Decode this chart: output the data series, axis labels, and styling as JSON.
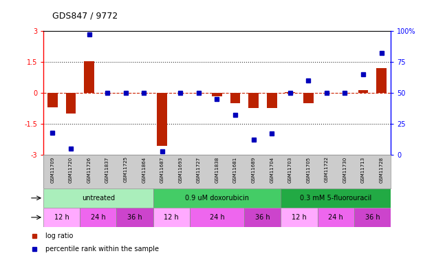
{
  "title": "GDS847 / 9772",
  "samples": [
    "GSM11709",
    "GSM11720",
    "GSM11726",
    "GSM11837",
    "GSM11725",
    "GSM11864",
    "GSM11687",
    "GSM11693",
    "GSM11727",
    "GSM11838",
    "GSM11681",
    "GSM11689",
    "GSM11704",
    "GSM11703",
    "GSM11705",
    "GSM11722",
    "GSM11730",
    "GSM11713",
    "GSM11728"
  ],
  "log_ratio": [
    -0.7,
    -1.0,
    1.55,
    0.0,
    0.0,
    0.0,
    -2.55,
    0.0,
    0.0,
    -0.18,
    -0.5,
    -0.72,
    -0.72,
    0.05,
    -0.5,
    0.0,
    0.0,
    0.12,
    1.2
  ],
  "percentile": [
    18,
    5,
    97,
    50,
    50,
    50,
    3,
    50,
    50,
    45,
    32,
    12,
    17,
    50,
    60,
    50,
    50,
    65,
    82
  ],
  "agents": [
    {
      "label": "untreated",
      "start": 0,
      "end": 6,
      "color": "#AAEEBB"
    },
    {
      "label": "0.9 uM doxorubicin",
      "start": 6,
      "end": 13,
      "color": "#44CC66"
    },
    {
      "label": "0.3 mM 5-fluorouracil",
      "start": 13,
      "end": 19,
      "color": "#22AA44"
    }
  ],
  "times": [
    {
      "label": "12 h",
      "start": 0,
      "end": 2,
      "color": "#FFAAFF"
    },
    {
      "label": "24 h",
      "start": 2,
      "end": 4,
      "color": "#EE66EE"
    },
    {
      "label": "36 h",
      "start": 4,
      "end": 6,
      "color": "#CC44CC"
    },
    {
      "label": "12 h",
      "start": 6,
      "end": 8,
      "color": "#FFAAFF"
    },
    {
      "label": "24 h",
      "start": 8,
      "end": 11,
      "color": "#EE66EE"
    },
    {
      "label": "36 h",
      "start": 11,
      "end": 13,
      "color": "#CC44CC"
    },
    {
      "label": "12 h",
      "start": 13,
      "end": 15,
      "color": "#FFAAFF"
    },
    {
      "label": "24 h",
      "start": 15,
      "end": 17,
      "color": "#EE66EE"
    },
    {
      "label": "36 h",
      "start": 17,
      "end": 19,
      "color": "#CC44CC"
    }
  ],
  "ylim_left": [
    -3,
    3
  ],
  "ylim_right": [
    0,
    100
  ],
  "yticks_left": [
    -3,
    -1.5,
    0,
    1.5,
    3
  ],
  "yticks_right": [
    0,
    25,
    50,
    75,
    100
  ],
  "bar_color": "#BB2200",
  "dot_color": "#0000BB",
  "zero_line_color": "#CC2200",
  "dotted_line_color": "#333333",
  "sample_row_color": "#CCCCCC",
  "left_label_color": "#444444"
}
